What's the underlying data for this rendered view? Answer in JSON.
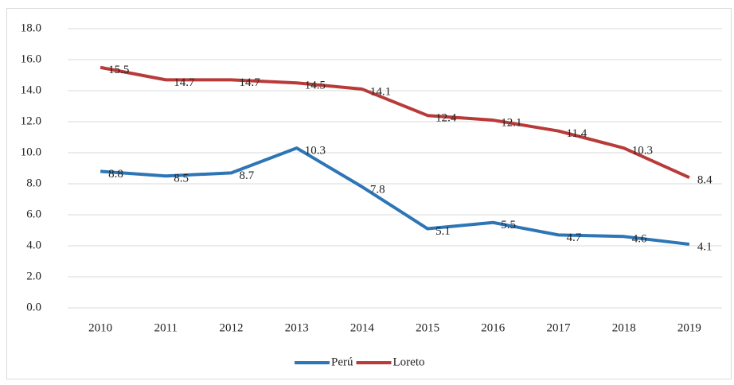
{
  "chart_data": {
    "type": "line",
    "categories": [
      "2010",
      "2011",
      "2012",
      "2013",
      "2014",
      "2015",
      "2016",
      "2017",
      "2018",
      "2019"
    ],
    "series": [
      {
        "name": "Perú",
        "color": "#2e75b6",
        "values": [
          8.8,
          8.5,
          8.7,
          10.3,
          7.8,
          5.1,
          5.5,
          4.7,
          4.6,
          4.1
        ]
      },
      {
        "name": "Loreto",
        "color": "#b83b3a",
        "values": [
          15.5,
          14.7,
          14.7,
          14.5,
          14.1,
          12.4,
          12.1,
          11.4,
          10.3,
          8.4
        ]
      }
    ],
    "ylim": [
      0,
      18
    ],
    "yticks": [
      {
        "value": 0,
        "label": "0.0"
      },
      {
        "value": 2,
        "label": "2.0"
      },
      {
        "value": 4,
        "label": "4.0"
      },
      {
        "value": 6,
        "label": "6.0"
      },
      {
        "value": 8,
        "label": "8.0"
      },
      {
        "value": 10,
        "label": "10.0"
      },
      {
        "value": 12,
        "label": "12.0"
      },
      {
        "value": 14,
        "label": "14.0"
      },
      {
        "value": 16,
        "label": "16.0"
      },
      {
        "value": 18,
        "label": "18.0"
      }
    ],
    "grid": true,
    "legend": "bottom"
  }
}
